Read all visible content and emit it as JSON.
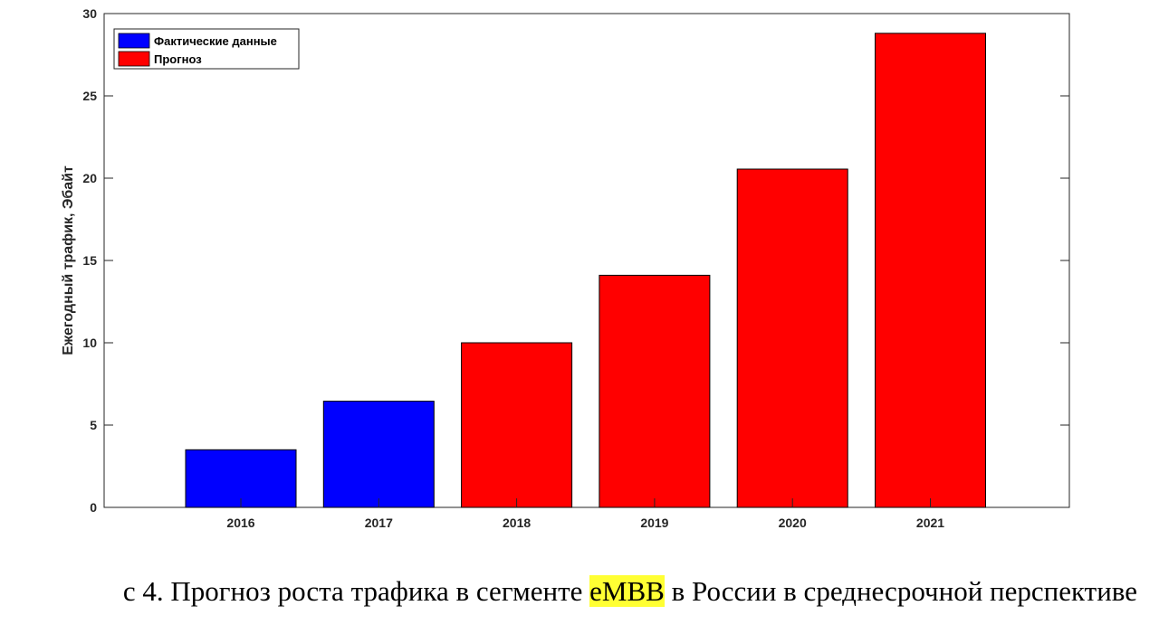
{
  "chart_data": {
    "type": "bar",
    "categories": [
      "2016",
      "2017",
      "2018",
      "2019",
      "2020",
      "2021"
    ],
    "values": [
      3.5,
      6.45,
      10.0,
      14.1,
      20.55,
      28.8
    ],
    "series_index": [
      0,
      0,
      1,
      1,
      1,
      1
    ],
    "series": [
      {
        "name": "Фактические данные",
        "color": "#0000ff"
      },
      {
        "name": "Прогноз",
        "color": "#ff0000"
      }
    ],
    "ylabel": "Ежегодный трафик, Эбайт",
    "xlabel": "",
    "ylim": [
      0,
      30
    ],
    "yticks": [
      0,
      5,
      10,
      15,
      20,
      25,
      30
    ],
    "legend_position": "top-left",
    "grid": false
  },
  "caption": {
    "prefix": "с 4. Прогноз роста трафика в сегменте ",
    "highlight": "eMBB",
    "suffix": " в России в среднесрочной перспективе"
  }
}
